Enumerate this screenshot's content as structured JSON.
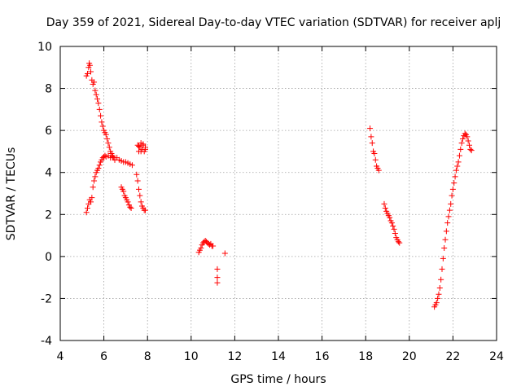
{
  "chart_data": {
    "type": "scatter",
    "marker": "plus",
    "title": "Day 359 of 2021, Sidereal Day-to-day VTEC variation (SDTVAR) for receiver aplj",
    "xlabel": "GPS time / hours",
    "ylabel": "SDTVAR / TECUs",
    "xlim": [
      4,
      24
    ],
    "ylim": [
      -4,
      10
    ],
    "xticks": [
      4,
      6,
      8,
      10,
      12,
      14,
      16,
      18,
      20,
      22,
      24
    ],
    "yticks": [
      -4,
      -2,
      0,
      2,
      4,
      6,
      8,
      10
    ],
    "grid": true,
    "series": [
      {
        "name": "SDTVAR",
        "color": "#ff0000",
        "segments": [
          {
            "x": [
              5.2,
              5.25,
              5.3,
              5.33,
              5.36,
              5.4,
              5.45,
              5.5,
              5.55,
              5.6,
              5.65,
              5.7,
              5.75,
              5.8,
              5.85,
              5.9,
              5.95,
              6.0,
              6.05,
              6.1,
              6.15,
              6.2,
              6.25,
              6.3,
              6.35,
              6.4,
              6.45,
              6.5
            ],
            "y": [
              8.6,
              8.7,
              9.0,
              9.2,
              9.1,
              8.8,
              8.4,
              8.2,
              8.3,
              7.9,
              7.7,
              7.5,
              7.3,
              7.0,
              6.7,
              6.4,
              6.2,
              6.0,
              5.9,
              5.8,
              5.6,
              5.4,
              5.2,
              5.0,
              4.9,
              4.8,
              4.7,
              4.6
            ]
          },
          {
            "x": [
              5.2,
              5.25,
              5.3,
              5.35,
              5.4,
              5.45,
              5.5,
              5.55,
              5.6,
              5.65,
              5.7,
              5.75,
              5.8,
              5.85,
              5.9,
              5.95,
              6.0,
              6.05,
              6.1,
              6.2,
              6.3,
              6.4,
              6.5,
              6.6,
              6.7,
              6.8,
              6.9,
              7.0,
              7.1,
              7.2,
              7.3
            ],
            "y": [
              2.1,
              2.3,
              2.5,
              2.7,
              2.6,
              2.8,
              3.3,
              3.6,
              3.8,
              4.0,
              4.1,
              4.2,
              4.35,
              4.5,
              4.6,
              4.7,
              4.75,
              4.8,
              4.75,
              4.8,
              4.7,
              4.75,
              4.6,
              4.7,
              4.6,
              4.55,
              4.5,
              4.5,
              4.45,
              4.4,
              4.35
            ]
          },
          {
            "x": [
              6.8,
              6.85,
              6.9,
              6.95,
              7.0,
              7.05,
              7.1,
              7.15,
              7.2,
              7.25
            ],
            "y": [
              3.3,
              3.2,
              3.1,
              2.9,
              2.8,
              2.7,
              2.6,
              2.45,
              2.35,
              2.3
            ]
          },
          {
            "x": [
              7.5,
              7.55,
              7.6,
              7.65,
              7.7,
              7.75,
              7.8,
              7.85,
              7.9
            ],
            "y": [
              3.9,
              3.6,
              3.2,
              2.9,
              2.6,
              2.4,
              2.3,
              2.2,
              2.2
            ]
          },
          {
            "x": [
              7.55,
              7.6,
              7.65,
              7.7,
              7.75,
              7.8,
              7.85,
              7.9,
              7.6,
              7.7,
              7.8,
              7.9
            ],
            "y": [
              5.3,
              5.0,
              5.2,
              5.4,
              5.1,
              5.3,
              5.0,
              5.2,
              5.25,
              5.0,
              5.35,
              5.1
            ]
          },
          {
            "x": [
              10.35,
              10.4,
              10.45,
              10.5,
              10.55,
              10.6,
              10.65,
              10.7,
              10.75,
              10.8,
              10.85,
              10.9,
              10.95,
              11.0
            ],
            "y": [
              0.2,
              0.3,
              0.4,
              0.55,
              0.65,
              0.7,
              0.75,
              0.7,
              0.65,
              0.6,
              0.55,
              0.6,
              0.5,
              0.5
            ]
          },
          {
            "x": [
              11.2,
              11.2,
              11.2,
              11.55
            ],
            "y": [
              -0.6,
              -1.0,
              -1.25,
              0.15
            ]
          },
          {
            "x": [
              18.2,
              18.25,
              18.3,
              18.35,
              18.4,
              18.45,
              18.5,
              18.55,
              18.6
            ],
            "y": [
              6.1,
              5.7,
              5.4,
              5.0,
              4.9,
              4.6,
              4.3,
              4.2,
              4.1
            ]
          },
          {
            "x": [
              18.85,
              18.9,
              18.95,
              19.0,
              19.05,
              19.1,
              19.15,
              19.2,
              19.25,
              19.3,
              19.35,
              19.4,
              19.45,
              19.5,
              19.55
            ],
            "y": [
              2.5,
              2.3,
              2.15,
              2.05,
              1.95,
              1.85,
              1.7,
              1.6,
              1.45,
              1.3,
              1.1,
              0.9,
              0.8,
              0.7,
              0.65
            ]
          },
          {
            "x": [
              21.15,
              21.2,
              21.25,
              21.3,
              21.35,
              21.4,
              21.45,
              21.5,
              21.55,
              21.6,
              21.65,
              21.7,
              21.75,
              21.8,
              21.85,
              21.9,
              21.95,
              22.0,
              22.05,
              22.1,
              22.15,
              22.2,
              22.25,
              22.3,
              22.35,
              22.4,
              22.45,
              22.5,
              22.55,
              22.6,
              22.65,
              22.7,
              22.75,
              22.8,
              22.85
            ],
            "y": [
              -2.4,
              -2.3,
              -2.2,
              -2.0,
              -1.8,
              -1.5,
              -1.1,
              -0.6,
              -0.1,
              0.4,
              0.8,
              1.2,
              1.6,
              1.9,
              2.2,
              2.5,
              2.9,
              3.2,
              3.5,
              3.8,
              4.1,
              4.3,
              4.5,
              4.8,
              5.1,
              5.4,
              5.6,
              5.75,
              5.85,
              5.8,
              5.7,
              5.5,
              5.3,
              5.1,
              5.05
            ]
          }
        ]
      }
    ]
  }
}
